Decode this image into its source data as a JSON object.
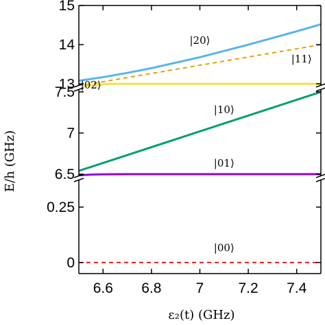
{
  "chart_data": {
    "type": "line",
    "xlabel": "ε₂(t) (GHz)",
    "ylabel": "E/h (GHz)",
    "xlim": [
      6.5,
      7.5
    ],
    "x_ticks": [
      "6.6",
      "6.8",
      "7",
      "7.2",
      "7.4"
    ],
    "x_tick_values": [
      6.6,
      6.8,
      7.0,
      7.2,
      7.4
    ],
    "grid": false,
    "panels": [
      {
        "ylim": [
          12.9,
          15.0
        ],
        "y_ticks": [
          "13",
          "14",
          "15"
        ],
        "y_tick_values": [
          13,
          14,
          15
        ]
      },
      {
        "ylim": [
          6.45,
          7.55
        ],
        "y_ticks": [
          "6.5",
          "7",
          "7.5"
        ],
        "y_tick_values": [
          6.5,
          7.0,
          7.5
        ]
      },
      {
        "ylim": [
          -0.05,
          0.38
        ],
        "y_ticks": [
          "0",
          "0.25"
        ],
        "y_tick_values": [
          0,
          0.25
        ]
      }
    ],
    "series": [
      {
        "name": "|20⟩",
        "color": "#56b4e9",
        "style": "solid",
        "panel": 0,
        "x": [
          6.5,
          6.6,
          6.7,
          6.8,
          6.9,
          7.0,
          7.1,
          7.2,
          7.3,
          7.4,
          7.5
        ],
        "y": [
          13.08,
          13.17,
          13.28,
          13.4,
          13.54,
          13.68,
          13.84,
          14.0,
          14.17,
          14.34,
          14.52
        ]
      },
      {
        "name": "|11⟩",
        "color": "#e69f00",
        "style": "dashed",
        "panel": 0,
        "x": [
          6.5,
          7.5
        ],
        "y": [
          12.95,
          14.0
        ]
      },
      {
        "name": "|02⟩",
        "color": "#f0e442",
        "style": "solid",
        "panel": 0,
        "x": [
          6.5,
          6.55,
          6.6,
          6.65,
          6.7,
          6.8,
          7.0,
          7.2,
          7.5
        ],
        "y": [
          12.93,
          12.96,
          12.99,
          13.0,
          13.0,
          13.0,
          13.0,
          13.0,
          13.0
        ]
      },
      {
        "name": "|10⟩",
        "color": "#009e73",
        "style": "solid",
        "panel": 1,
        "x": [
          6.5,
          7.0,
          7.5
        ],
        "y": [
          6.54,
          7.02,
          7.5
        ]
      },
      {
        "name": "|01⟩",
        "color": "#9400d3",
        "style": "solid",
        "panel": 1,
        "x": [
          6.5,
          6.55,
          6.6,
          6.7,
          6.8,
          7.0,
          7.5
        ],
        "y": [
          6.485,
          6.495,
          6.498,
          6.5,
          6.5,
          6.5,
          6.5
        ]
      },
      {
        "name": "|00⟩",
        "color": "#e41a1c",
        "style": "dashed",
        "panel": 2,
        "x": [
          6.5,
          7.5
        ],
        "y": [
          0,
          0
        ]
      }
    ],
    "annotations": [
      {
        "text": "|20⟩",
        "x": 7.0,
        "y": 14.02,
        "panel": 0
      },
      {
        "text": "|11⟩",
        "x": 7.42,
        "y": 13.55,
        "panel": 0
      },
      {
        "text": "|02⟩",
        "x": 6.55,
        "y": 12.88,
        "panel": 0
      },
      {
        "text": "|10⟩",
        "x": 7.1,
        "y": 7.24,
        "panel": 1
      },
      {
        "text": "|01⟩",
        "x": 7.1,
        "y": 6.59,
        "panel": 1
      },
      {
        "text": "|00⟩",
        "x": 7.1,
        "y": 0.05,
        "panel": 2
      }
    ]
  }
}
